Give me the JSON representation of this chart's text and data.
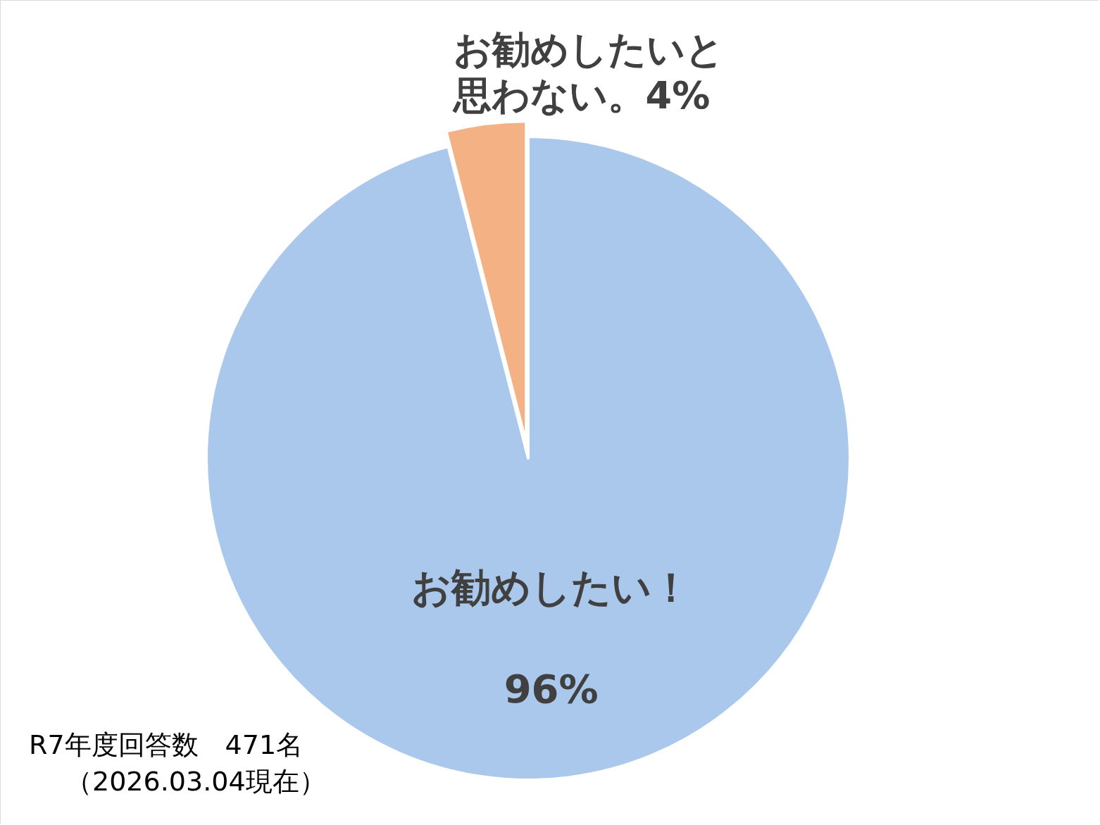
{
  "chart_data": {
    "type": "pie",
    "categories": [
      "お勧めしたい！",
      "お勧めしたいと思わない。"
    ],
    "values": [
      96,
      4
    ],
    "colors": [
      "#a9c8eb",
      "#f4b183"
    ],
    "value_labels": [
      "96%",
      "4%"
    ],
    "annotations": [
      "R7年度回答数　471名",
      "（2026.03.04現在）"
    ]
  }
}
